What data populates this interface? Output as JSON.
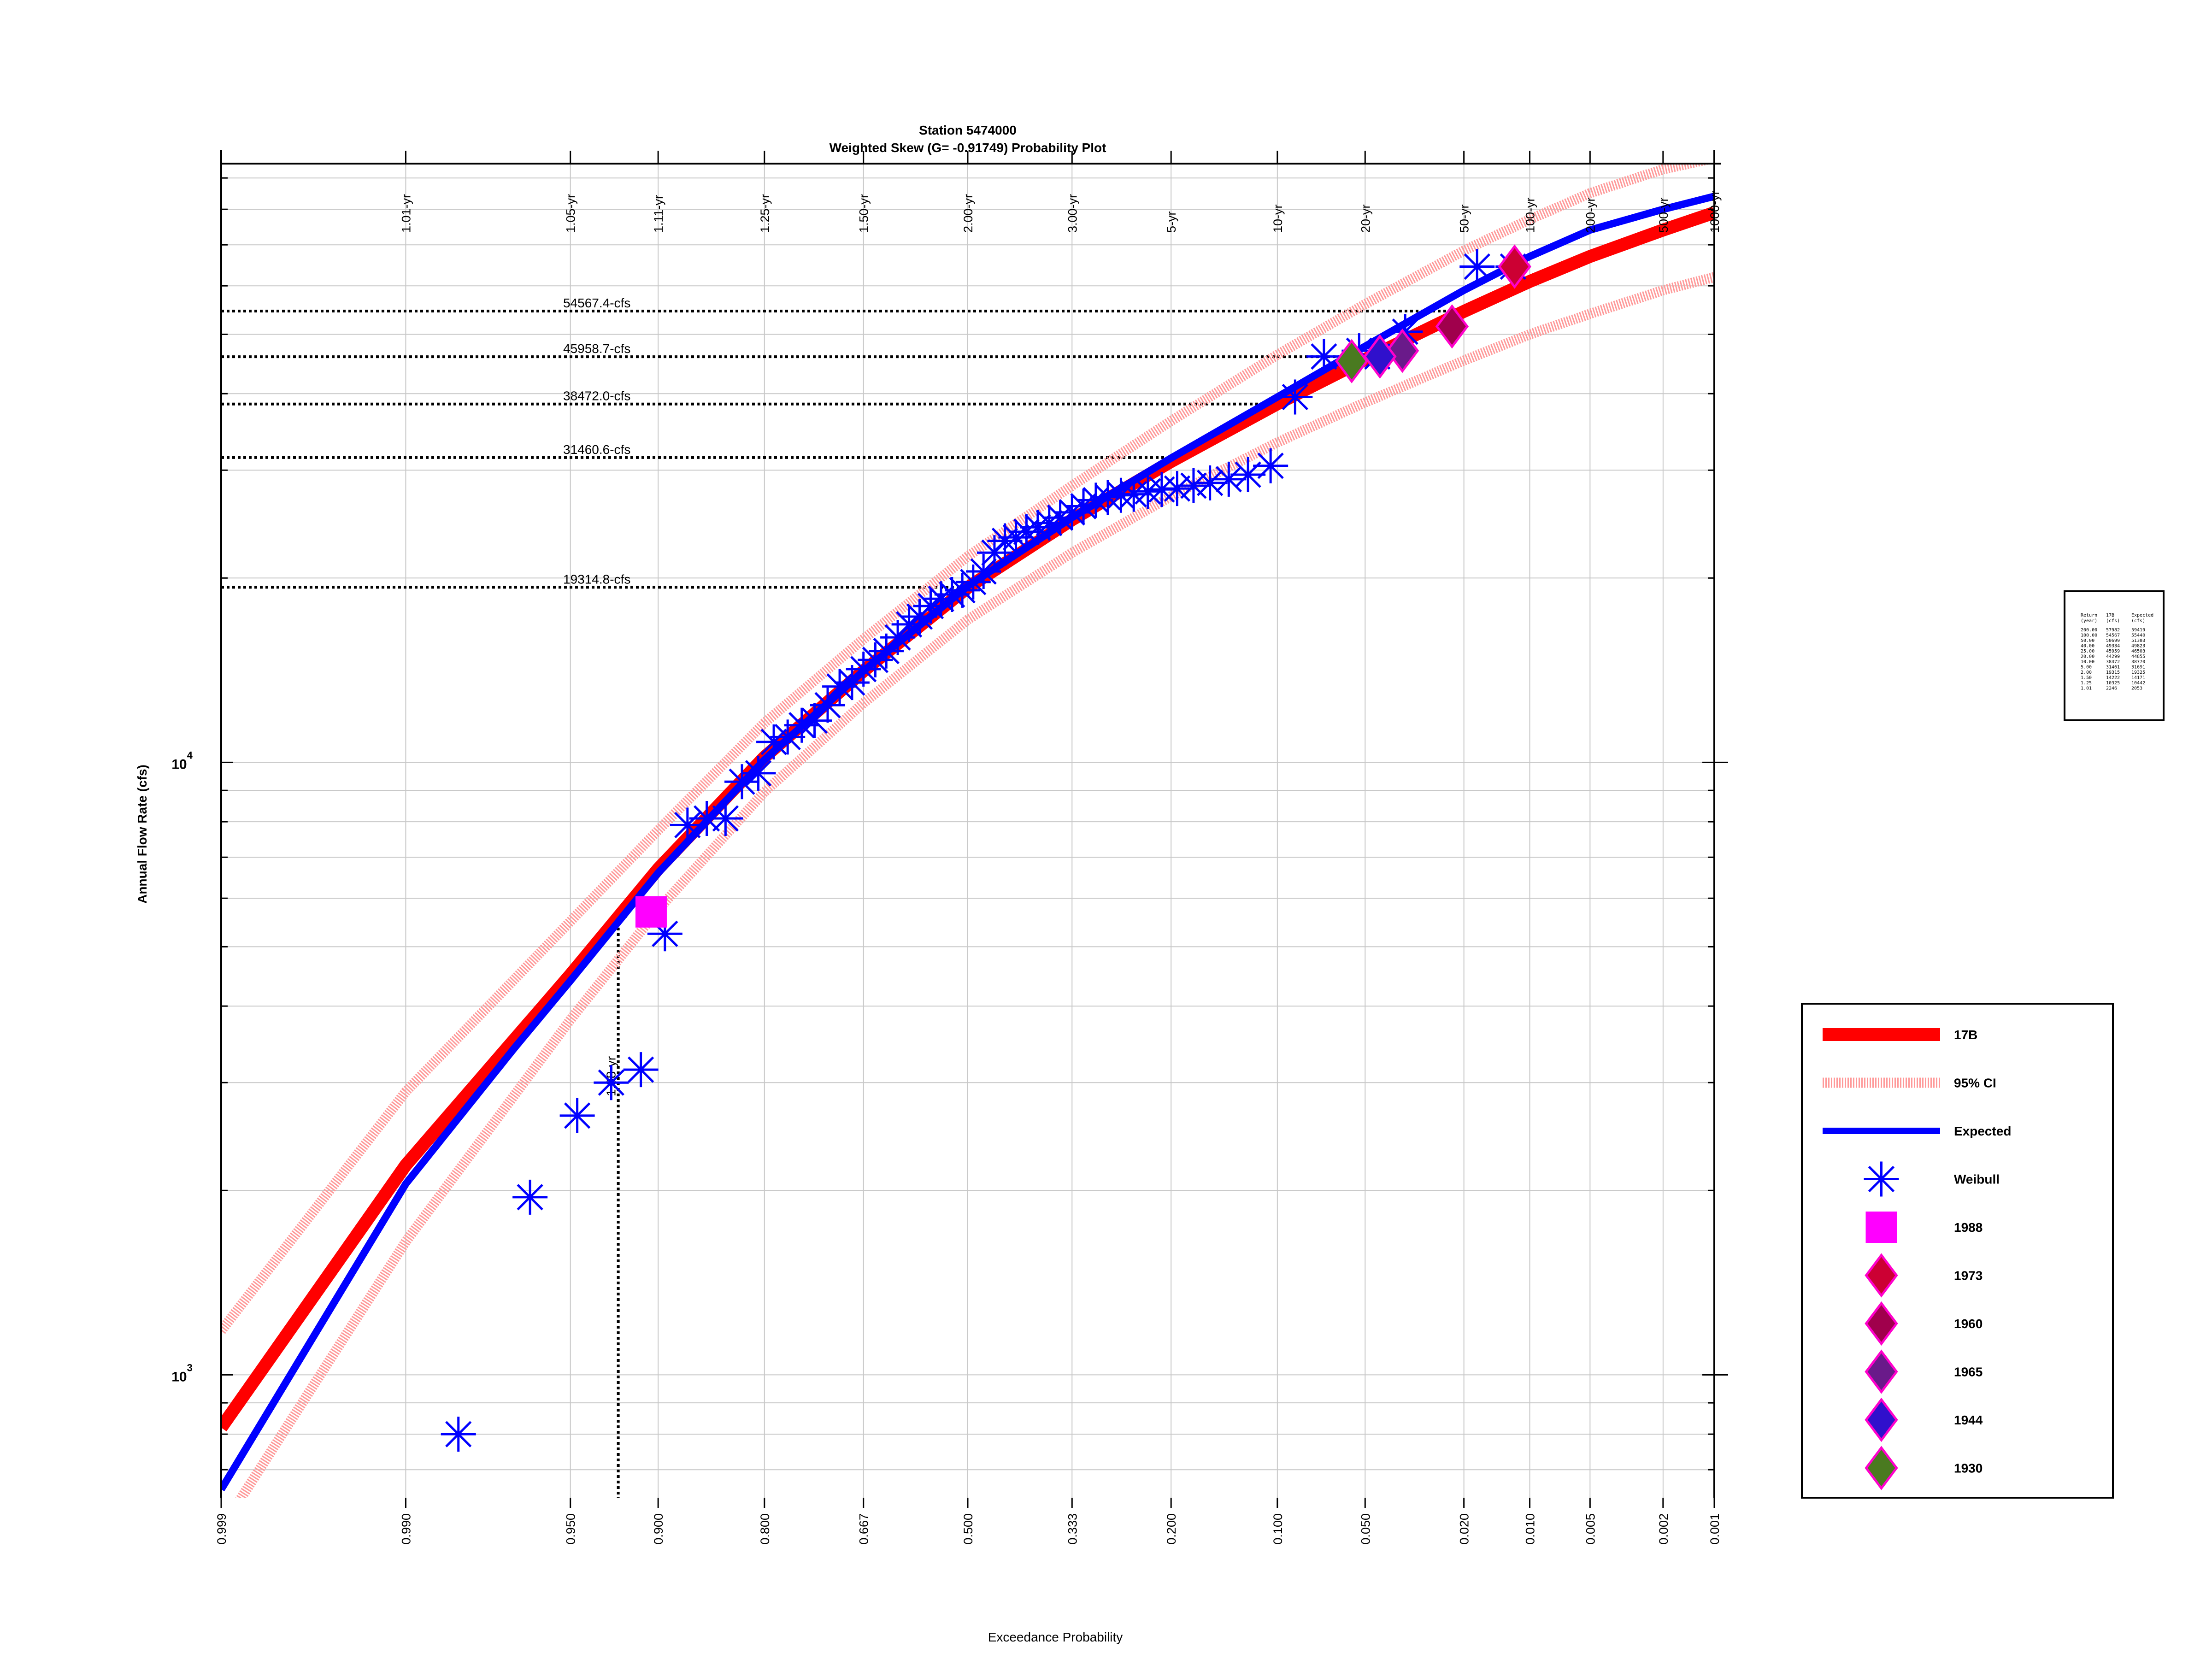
{
  "chart_data": {
    "type": "scatter",
    "title": "Station 5474000",
    "subtitle": "Weighted Skew (G= -0.91749) Probability Plot",
    "xlabel": "Exceedance Probability",
    "ylabel": "Annual Flow Rate (cfs)",
    "x_scale": "normal-probability",
    "y_scale": "log",
    "xlim": [
      0.999,
      0.001
    ],
    "ylim": [
      630,
      95000
    ],
    "grid": true,
    "legend_position": "right",
    "x_ticks": [
      "0.999",
      "0.990",
      "0.950",
      "0.900",
      "0.800",
      "0.667",
      "0.500",
      "0.333",
      "0.200",
      "0.100",
      "0.050",
      "0.020",
      "0.010",
      "0.005",
      "0.002",
      "0.001"
    ],
    "x_tick_values": [
      0.999,
      0.99,
      0.95,
      0.9,
      0.8,
      0.667,
      0.5,
      0.333,
      0.2,
      0.1,
      0.05,
      0.02,
      0.01,
      0.005,
      0.002,
      0.001
    ],
    "return_period_labels": [
      "1.01-yr",
      "1.05-yr",
      "1.11-yr",
      "1.25-yr",
      "1.50-yr",
      "2.00-yr",
      "3.00-yr",
      "5-yr",
      "10-yr",
      "20-yr",
      "50-yr",
      "100-yr",
      "200-yr",
      "500-yr",
      "1000-yr"
    ],
    "return_period_p": [
      0.99,
      0.95,
      0.9,
      0.8,
      0.667,
      0.5,
      0.333,
      0.2,
      0.1,
      0.05,
      0.02,
      0.01,
      0.005,
      0.002,
      0.001
    ],
    "y_tick_labels": [
      {
        "base": "10",
        "exp": "3",
        "value": 1000
      },
      {
        "base": "10",
        "exp": "4",
        "value": 10000
      }
    ],
    "reference_lines": [
      {
        "label": "54567.4-cfs",
        "value": 54567.4,
        "p": 0.02
      },
      {
        "label": "45958.7-cfs",
        "value": 45958.7,
        "p": 0.04
      },
      {
        "label": "38472.0-cfs",
        "value": 38472.0,
        "p": 0.1
      },
      {
        "label": "31460.6-cfs",
        "value": 31460.6,
        "p": 0.2
      },
      {
        "label": "19314.8-cfs",
        "value": 19314.8,
        "p": 0.5
      }
    ],
    "vertical_marker": {
      "label": "1.08-yr",
      "p": 0.926,
      "value": 5600
    },
    "series": [
      {
        "name": "17B",
        "style": "line",
        "color": "#ff0000",
        "x": [
          0.999,
          0.99,
          0.95,
          0.9,
          0.8,
          0.667,
          0.5,
          0.333,
          0.2,
          0.1,
          0.05,
          0.02,
          0.01,
          0.005,
          0.002,
          0.001
        ],
        "values": [
          820,
          2200,
          4500,
          6700,
          10200,
          14100,
          19300,
          24900,
          31000,
          38500,
          45500,
          54500,
          61000,
          67000,
          74000,
          79000
        ]
      },
      {
        "name": "95% CI",
        "style": "dashed-band",
        "color": "#ff9999",
        "x": [
          0.999,
          0.99,
          0.95,
          0.9,
          0.8,
          0.667,
          0.5,
          0.333,
          0.2,
          0.1,
          0.05,
          0.02,
          0.01,
          0.005,
          0.002,
          0.001
        ],
        "upper": [
          1180,
          2900,
          5500,
          7750,
          11600,
          15900,
          21700,
          28300,
          36100,
          46300,
          56000,
          68500,
          77000,
          85000,
          93000,
          97000
        ],
        "lower": [
          560,
          1650,
          3800,
          5750,
          8950,
          12500,
          17100,
          22000,
          27200,
          33300,
          38700,
          45300,
          50000,
          54000,
          59000,
          62000
        ]
      },
      {
        "name": "Expected",
        "style": "line",
        "color": "#0000ff",
        "x": [
          0.999,
          0.99,
          0.97,
          0.95,
          0.9,
          0.8,
          0.667,
          0.5,
          0.333,
          0.2,
          0.1,
          0.05,
          0.02,
          0.01,
          0.005,
          0.002,
          0.001
        ],
        "values": [
          650,
          2050,
          3400,
          4400,
          6600,
          10100,
          14100,
          19400,
          25100,
          31400,
          39500,
          47800,
          59000,
          67000,
          74000,
          80000,
          84000
        ]
      },
      {
        "name": "Weibull",
        "style": "asterisk",
        "color": "#0000ff",
        "x": [
          0.9825,
          0.965,
          0.947,
          0.93,
          0.912,
          0.895,
          0.877,
          0.86,
          0.842,
          0.825,
          0.807,
          0.789,
          0.772,
          0.754,
          0.737,
          0.719,
          0.702,
          0.684,
          0.667,
          0.649,
          0.632,
          0.614,
          0.596,
          0.579,
          0.561,
          0.544,
          0.526,
          0.509,
          0.491,
          0.474,
          0.456,
          0.439,
          0.421,
          0.404,
          0.386,
          0.368,
          0.351,
          0.333,
          0.316,
          0.298,
          0.281,
          0.263,
          0.246,
          0.228,
          0.211,
          0.193,
          0.175,
          0.158,
          0.14,
          0.123,
          0.105,
          0.0877,
          0.0702,
          0.0526,
          0.0351,
          0.0175,
          0.045,
          0.012
        ],
        "values": [
          800,
          1950,
          2650,
          3000,
          3150,
          5250,
          7900,
          8100,
          8100,
          9300,
          9600,
          10800,
          11000,
          11500,
          11700,
          12400,
          13300,
          13500,
          14200,
          14700,
          15200,
          16000,
          16800,
          17300,
          18000,
          18500,
          18800,
          19100,
          19700,
          20500,
          22000,
          23000,
          23300,
          23800,
          24200,
          24600,
          25100,
          25600,
          26200,
          26800,
          27100,
          27300,
          27400,
          27700,
          27900,
          28000,
          28300,
          28600,
          29000,
          29500,
          30500,
          39500,
          46000,
          47000,
          50500,
          64500,
          46000,
          64500
        ]
      },
      {
        "name": "1988",
        "style": "square",
        "color": "#ff00ff",
        "x": [
          0.905
        ],
        "values": [
          5700
        ]
      },
      {
        "name": "1973",
        "style": "diamond",
        "color": "#cc0033",
        "x": [
          0.0118
        ],
        "values": [
          64500
        ]
      },
      {
        "name": "1960",
        "style": "diamond",
        "color": "#a0004c",
        "x": [
          0.0225
        ],
        "values": [
          51500
        ]
      },
      {
        "name": "1965",
        "style": "diamond",
        "color": "#6a1a8a",
        "x": [
          0.036
        ],
        "values": [
          47000
        ]
      },
      {
        "name": "1944",
        "style": "diamond",
        "color": "#3010cc",
        "x": [
          0.044
        ],
        "values": [
          46000
        ]
      },
      {
        "name": "1930",
        "style": "diamond",
        "color": "#4a7a20",
        "x": [
          0.056
        ],
        "values": [
          45200
        ]
      }
    ],
    "table": {
      "header": [
        [
          "Return",
          "17B",
          "Expected"
        ],
        [
          "(year)",
          "(cfs)",
          "(cfs)"
        ]
      ],
      "rows": [
        [
          "200.00",
          "57982",
          "59419"
        ],
        [
          "100.00",
          "54567",
          "55440"
        ],
        [
          "50.00",
          "50699",
          "51303"
        ],
        [
          "40.00",
          "49334",
          "49823"
        ],
        [
          "25.00",
          "45959",
          "46503"
        ],
        [
          "20.00",
          "44299",
          "44855"
        ],
        [
          "10.00",
          "38472",
          "38770"
        ],
        [
          "5.00",
          "31461",
          "31691"
        ],
        [
          "2.00",
          "19315",
          "19325"
        ],
        [
          "1.50",
          "14222",
          "14171"
        ],
        [
          "1.25",
          "10325",
          "10442"
        ],
        [
          "1.01",
          "2246",
          "2053"
        ]
      ]
    }
  },
  "colors": {
    "17B": "#ff0000",
    "ci": "#ff9999",
    "expected": "#0000ff",
    "weibull": "#0000ff",
    "y1988": "#ff00ff",
    "grid": "#c8c8c8"
  }
}
